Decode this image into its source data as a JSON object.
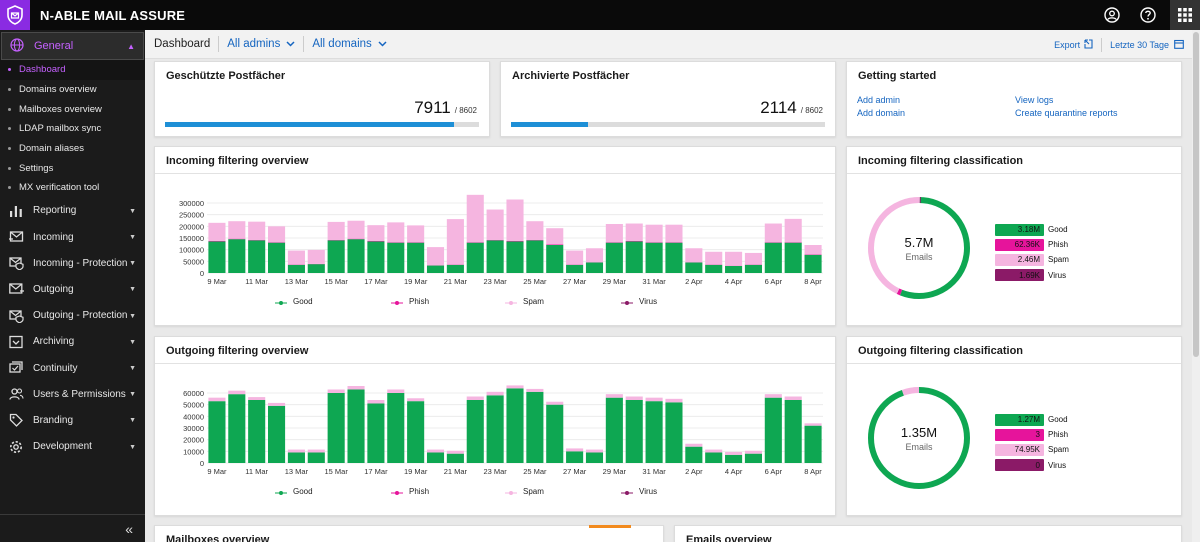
{
  "app": {
    "title": "N-ABLE MAIL ASSURE"
  },
  "header_icons": {
    "user": "user-circle-icon",
    "help": "help-icon",
    "apps": "apps-grid-icon"
  },
  "sidebar": {
    "general_label": "General",
    "sub_items": [
      "Dashboard",
      "Domains overview",
      "Mailboxes overview",
      "LDAP mailbox sync",
      "Domain aliases",
      "Settings",
      "MX verification tool"
    ],
    "items": [
      {
        "label": "Reporting",
        "icon": "bar-chart-icon"
      },
      {
        "label": "Incoming",
        "icon": "incoming-mail-icon"
      },
      {
        "label": "Incoming - Protection",
        "icon": "incoming-protection-icon"
      },
      {
        "label": "Outgoing",
        "icon": "outgoing-mail-icon"
      },
      {
        "label": "Outgoing - Protection",
        "icon": "outgoing-protection-icon"
      },
      {
        "label": "Archiving",
        "icon": "archive-icon"
      },
      {
        "label": "Continuity",
        "icon": "continuity-icon"
      },
      {
        "label": "Users & Permissions",
        "icon": "users-icon"
      },
      {
        "label": "Branding",
        "icon": "tag-icon"
      },
      {
        "label": "Development",
        "icon": "gear-icon"
      }
    ],
    "collapse_label": "«"
  },
  "toolbar": {
    "breadcrumb": "Dashboard",
    "admins": "All admins",
    "domains": "All domains",
    "export": "Export",
    "range": "Letzte 30 Tage"
  },
  "cards": {
    "protected": {
      "title": "Geschützte Postfächer",
      "value": "7911",
      "total": "/ 8602",
      "fraction": 0.92
    },
    "archived": {
      "title": "Archivierte Postfächer",
      "value": "2114",
      "total": "/ 8602",
      "fraction": 0.246
    },
    "getting_started": {
      "title": "Getting started",
      "links": [
        "Add admin",
        "View logs",
        "Add domain",
        "Create quarantine reports"
      ]
    },
    "incoming_overview": {
      "title": "Incoming filtering overview"
    },
    "outgoing_overview": {
      "title": "Outgoing filtering overview"
    },
    "incoming_class": {
      "title": "Incoming filtering classification",
      "total": "5.7M",
      "unit": "Emails"
    },
    "outgoing_class": {
      "title": "Outgoing filtering classification",
      "total": "1.35M",
      "unit": "Emails"
    },
    "mailboxes": {
      "title": "Mailboxes overview"
    },
    "emails": {
      "title": "Emails overview"
    }
  },
  "colors": {
    "good": "#0ea752",
    "phish": "#e6149b",
    "spam": "#f5b5e0",
    "virus": "#8b1a67",
    "accent": "#8a2be2",
    "progress": "#1e8fd6"
  },
  "legend": [
    "Good",
    "Phish",
    "Spam",
    "Virus"
  ],
  "classification": {
    "incoming": [
      {
        "label": "Good",
        "value": "3.18M",
        "share": 0.56
      },
      {
        "label": "Phish",
        "value": "62.36K",
        "share": 0.011
      },
      {
        "label": "Spam",
        "value": "2.46M",
        "share": 0.432
      },
      {
        "label": "Virus",
        "value": "1.69K",
        "share": 0.003
      }
    ],
    "outgoing": [
      {
        "label": "Good",
        "value": "1.27M",
        "share": 0.944
      },
      {
        "label": "Phish",
        "value": "3",
        "share": 0.0
      },
      {
        "label": "Spam",
        "value": "74.95K",
        "share": 0.056
      },
      {
        "label": "Virus",
        "value": "0",
        "share": 0.0
      }
    ]
  },
  "chart_data": [
    {
      "type": "bar",
      "stacked": true,
      "ylim": [
        0,
        330000
      ],
      "yticks": [
        0,
        50000,
        100000,
        150000,
        200000,
        250000,
        300000
      ],
      "xtick_labels": [
        "9 Mar",
        "11 Mar",
        "13 Mar",
        "15 Mar",
        "17 Mar",
        "19 Mar",
        "21 Mar",
        "23 Mar",
        "25 Mar",
        "27 Mar",
        "29 Mar",
        "31 Mar",
        "2 Apr",
        "4 Apr",
        "6 Apr",
        "8 Apr"
      ],
      "categories": [
        "9 Mar",
        "10 Mar",
        "11 Mar",
        "12 Mar",
        "13 Mar",
        "14 Mar",
        "15 Mar",
        "16 Mar",
        "17 Mar",
        "18 Mar",
        "19 Mar",
        "20 Mar",
        "21 Mar",
        "22 Mar",
        "23 Mar",
        "24 Mar",
        "25 Mar",
        "26 Mar",
        "27 Mar",
        "28 Mar",
        "29 Mar",
        "30 Mar",
        "31 Mar",
        "1 Apr",
        "2 Apr",
        "3 Apr",
        "4 Apr",
        "5 Apr",
        "6 Apr",
        "7 Apr",
        "8 Apr"
      ],
      "series": [
        {
          "name": "Good",
          "values": [
            135000,
            145000,
            140000,
            130000,
            35000,
            38000,
            140000,
            145000,
            135000,
            130000,
            130000,
            32000,
            35000,
            130000,
            140000,
            135000,
            140000,
            120000,
            35000,
            45000,
            130000,
            135000,
            130000,
            130000,
            45000,
            35000,
            30000,
            35000,
            130000,
            130000,
            78000
          ]
        },
        {
          "name": "Phish",
          "values": [
            2000,
            2000,
            2000,
            2000,
            1000,
            1000,
            2000,
            2000,
            2000,
            2000,
            2000,
            1000,
            1000,
            2000,
            2000,
            2000,
            2000,
            2000,
            1000,
            1000,
            2000,
            2000,
            2000,
            2000,
            1000,
            1000,
            1000,
            1000,
            2000,
            2000,
            2000
          ]
        },
        {
          "name": "Spam",
          "values": [
            78000,
            75000,
            78000,
            68000,
            60000,
            60000,
            77000,
            77000,
            68000,
            85000,
            72000,
            78000,
            195000,
            203000,
            130000,
            178000,
            80000,
            70000,
            60000,
            60000,
            78000,
            75000,
            75000,
            75000,
            60000,
            55000,
            60000,
            50000,
            80000,
            100000,
            40000
          ]
        },
        {
          "name": "Virus",
          "values": [
            0,
            0,
            0,
            0,
            0,
            0,
            0,
            0,
            0,
            0,
            0,
            0,
            0,
            0,
            0,
            0,
            0,
            0,
            0,
            0,
            0,
            0,
            0,
            0,
            0,
            0,
            0,
            0,
            0,
            0,
            0
          ]
        }
      ]
    },
    {
      "type": "bar",
      "stacked": true,
      "ylim": [
        0,
        66000
      ],
      "yticks": [
        0,
        10000,
        20000,
        30000,
        40000,
        50000,
        60000
      ],
      "xtick_labels": [
        "9 Mar",
        "11 Mar",
        "13 Mar",
        "15 Mar",
        "17 Mar",
        "19 Mar",
        "21 Mar",
        "23 Mar",
        "25 Mar",
        "27 Mar",
        "29 Mar",
        "31 Mar",
        "2 Apr",
        "4 Apr",
        "6 Apr",
        "8 Apr"
      ],
      "categories": [
        "9 Mar",
        "10 Mar",
        "11 Mar",
        "12 Mar",
        "13 Mar",
        "14 Mar",
        "15 Mar",
        "16 Mar",
        "17 Mar",
        "18 Mar",
        "19 Mar",
        "20 Mar",
        "21 Mar",
        "22 Mar",
        "23 Mar",
        "24 Mar",
        "25 Mar",
        "26 Mar",
        "27 Mar",
        "28 Mar",
        "29 Mar",
        "30 Mar",
        "31 Mar",
        "1 Apr",
        "2 Apr",
        "3 Apr",
        "4 Apr",
        "5 Apr",
        "6 Apr",
        "7 Apr",
        "8 Apr"
      ],
      "series": [
        {
          "name": "Good",
          "values": [
            53000,
            59000,
            54000,
            49000,
            9000,
            9000,
            60000,
            63000,
            51000,
            60000,
            53000,
            9000,
            8000,
            54000,
            58000,
            64000,
            61000,
            50000,
            10000,
            9000,
            56000,
            54000,
            53000,
            52000,
            14000,
            9000,
            7000,
            8000,
            56000,
            54000,
            32000
          ]
        },
        {
          "name": "Phish",
          "values": [
            0,
            0,
            0,
            0,
            0,
            0,
            0,
            0,
            0,
            0,
            0,
            0,
            0,
            0,
            0,
            0,
            0,
            0,
            0,
            0,
            0,
            0,
            0,
            0,
            0,
            0,
            0,
            0,
            0,
            0,
            0
          ]
        },
        {
          "name": "Spam",
          "values": [
            3000,
            3000,
            2500,
            2500,
            2500,
            2500,
            3000,
            3000,
            3000,
            3000,
            2500,
            2500,
            2500,
            3000,
            3000,
            2500,
            2500,
            2500,
            2500,
            2500,
            3000,
            3000,
            3000,
            3000,
            2500,
            2500,
            2500,
            2500,
            3000,
            3000,
            2000
          ]
        },
        {
          "name": "Virus",
          "values": [
            0,
            0,
            0,
            0,
            0,
            0,
            0,
            0,
            0,
            0,
            0,
            0,
            0,
            0,
            0,
            0,
            0,
            0,
            0,
            0,
            0,
            0,
            0,
            0,
            0,
            0,
            0,
            0,
            0,
            0,
            0
          ]
        }
      ]
    },
    {
      "type": "pie",
      "donut": true,
      "categories": [
        "Good",
        "Phish",
        "Spam",
        "Virus"
      ],
      "values": [
        3180000,
        62360,
        2460000,
        1690
      ]
    },
    {
      "type": "pie",
      "donut": true,
      "categories": [
        "Good",
        "Phish",
        "Spam",
        "Virus"
      ],
      "values": [
        1270000,
        3,
        74950,
        0
      ]
    }
  ]
}
